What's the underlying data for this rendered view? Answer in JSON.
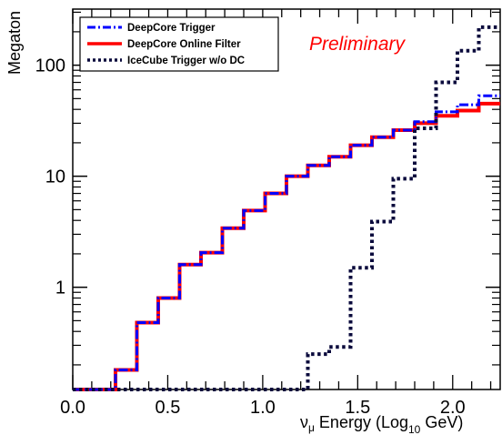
{
  "chart_data": {
    "type": "line",
    "x_edges": [
      0.0,
      0.1125,
      0.225,
      0.3375,
      0.45,
      0.5625,
      0.675,
      0.7875,
      0.9,
      1.0125,
      1.125,
      1.2375,
      1.35,
      1.4625,
      1.575,
      1.6875,
      1.8,
      1.9125,
      2.025,
      2.1375,
      2.25
    ],
    "series": [
      {
        "name": "DeepCore Trigger",
        "color": "#0000ff",
        "style": "dashdot",
        "values": [
          0.12,
          0.12,
          0.18,
          0.48,
          0.8,
          1.6,
          2.05,
          3.4,
          4.9,
          7.0,
          10.0,
          12.5,
          15.0,
          19.0,
          22.5,
          26.0,
          31.0,
          38.0,
          44.0,
          53.0
        ]
      },
      {
        "name": "DeepCore Online Filter",
        "color": "#ff0000",
        "style": "solid",
        "values": [
          0.12,
          0.12,
          0.18,
          0.48,
          0.8,
          1.6,
          2.05,
          3.4,
          4.9,
          7.0,
          10.0,
          12.5,
          15.0,
          19.0,
          22.5,
          26.0,
          30.0,
          35.0,
          39.0,
          45.0
        ]
      },
      {
        "name": "IceCube Trigger w/o DC",
        "color": "#0a0a3c",
        "style": "dotted",
        "values": [
          0.12,
          0.12,
          0.12,
          0.12,
          0.12,
          0.12,
          0.12,
          0.12,
          0.12,
          0.12,
          0.12,
          0.25,
          0.29,
          1.5,
          3.9,
          9.5,
          27.0,
          70.0,
          135.0,
          220.0
        ]
      }
    ],
    "x_ticks": [
      {
        "value": 0.0,
        "label": "0.0"
      },
      {
        "value": 0.5,
        "label": "0.5"
      },
      {
        "value": 1.0,
        "label": "1.0"
      },
      {
        "value": 1.5,
        "label": "1.5"
      },
      {
        "value": 2.0,
        "label": "2.0"
      }
    ],
    "y_ticks": [
      {
        "value": 1,
        "label": "1"
      },
      {
        "value": 10,
        "label": "10"
      },
      {
        "value": 100,
        "label": "100"
      }
    ],
    "xlim": [
      0.0,
      2.25
    ],
    "ylim": [
      0.12,
      320
    ],
    "yscale": "log",
    "xlabel": {
      "nu": "ν",
      "mu": "μ",
      "text": " Energy (Log",
      "sub": "10",
      "tail": " GeV)"
    },
    "ylabel": "Megaton",
    "annotation": "Preliminary",
    "legend_position": "top-left",
    "grid": false
  }
}
